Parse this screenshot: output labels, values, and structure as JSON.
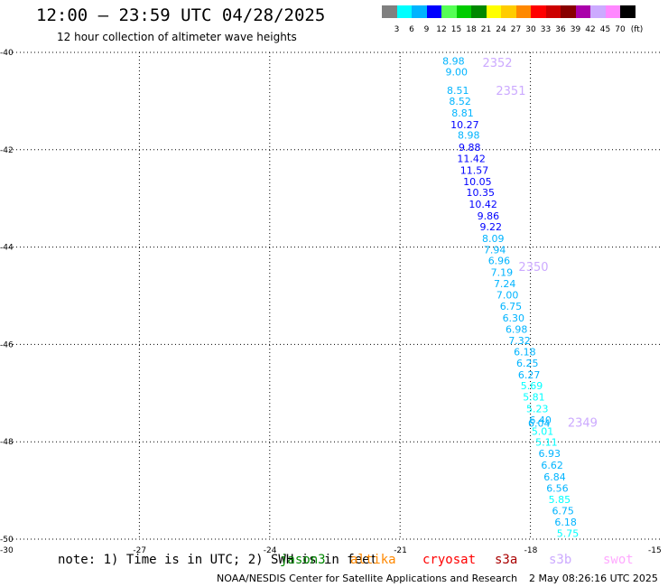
{
  "header": {
    "title": "12:00 – 23:59 UTC 04/28/2025",
    "subtitle": "12 hour collection of altimeter wave heights"
  },
  "legend": {
    "unit": "(ft)",
    "bins": [
      {
        "label": "3",
        "color": "#808080"
      },
      {
        "label": "6",
        "color": "#00ffff"
      },
      {
        "label": "9",
        "color": "#00b4ff"
      },
      {
        "label": "12",
        "color": "#0000ff"
      },
      {
        "label": "15",
        "color": "#55ff55"
      },
      {
        "label": "18",
        "color": "#00cc00"
      },
      {
        "label": "21",
        "color": "#008800"
      },
      {
        "label": "24",
        "color": "#ffff00"
      },
      {
        "label": "27",
        "color": "#ffcc00"
      },
      {
        "label": "30",
        "color": "#ff8800"
      },
      {
        "label": "33",
        "color": "#ff0000"
      },
      {
        "label": "36",
        "color": "#cc0000"
      },
      {
        "label": "39",
        "color": "#880000"
      },
      {
        "label": "42",
        "color": "#aa00aa"
      },
      {
        "label": "45",
        "color": "#ccaaff"
      },
      {
        "label": "70",
        "color": "#ff88ff"
      },
      {
        "label": "",
        "color": "#000000"
      }
    ]
  },
  "footer": {
    "note": "note: 1) Time is in UTC; 2) SWH is in feet",
    "satellites": [
      {
        "name": "jason3",
        "color": "#008800"
      },
      {
        "name": "altika",
        "color": "#ff8800"
      },
      {
        "name": "cryosat",
        "color": "#ff0000"
      },
      {
        "name": "s3a",
        "color": "#aa0000"
      },
      {
        "name": "s3b",
        "color": "#ccaaff"
      },
      {
        "name": "swot",
        "color": "#ffaaff"
      }
    ],
    "credit_org": "NOAA/NESDIS Center for Satellite Applications and Research",
    "credit_time": "2 May 08:26:16 UTC 2025"
  },
  "chart_data": {
    "type": "scatter",
    "title": "12:00 – 23:59 UTC 04/28/2025",
    "subtitle": "12 hour collection of altimeter wave heights",
    "xlim": [
      -30,
      -15
    ],
    "ylim": [
      -50,
      -40
    ],
    "x_ticks": [
      "-30",
      "-27",
      "-24",
      "-21",
      "-18",
      "-15"
    ],
    "y_ticks": [
      "-40",
      "-42",
      "-44",
      "-46",
      "-48",
      "-50"
    ],
    "x_tick_values": [
      -30,
      -27,
      -24,
      -21,
      -18,
      -15
    ],
    "y_tick_values": [
      -40,
      -42,
      -44,
      -46,
      -48,
      -50
    ],
    "grid": true,
    "unit": "ft",
    "points": [
      {
        "lon": -19.77,
        "lat": -40.18,
        "value": "8.98",
        "color": "#00b4ff"
      },
      {
        "lon": -19.7,
        "lat": -40.4,
        "value": "9.00",
        "color": "#00b4ff"
      },
      {
        "lon": -19.67,
        "lat": -40.78,
        "value": "8.51",
        "color": "#00b4ff"
      },
      {
        "lon": -19.62,
        "lat": -41.0,
        "value": "8.52",
        "color": "#00b4ff"
      },
      {
        "lon": -19.56,
        "lat": -41.24,
        "value": "8.81",
        "color": "#00b4ff"
      },
      {
        "lon": -19.51,
        "lat": -41.48,
        "value": "10.27",
        "color": "#0000ff"
      },
      {
        "lon": -19.42,
        "lat": -41.7,
        "value": "8.98",
        "color": "#00b4ff"
      },
      {
        "lon": -19.4,
        "lat": -41.95,
        "value": "9.88",
        "color": "#0000ff"
      },
      {
        "lon": -19.36,
        "lat": -42.18,
        "value": "11.42",
        "color": "#0000ff"
      },
      {
        "lon": -19.29,
        "lat": -42.42,
        "value": "11.57",
        "color": "#0000ff"
      },
      {
        "lon": -19.22,
        "lat": -42.65,
        "value": "10.05",
        "color": "#0000ff"
      },
      {
        "lon": -19.15,
        "lat": -42.88,
        "value": "10.35",
        "color": "#0000ff"
      },
      {
        "lon": -19.09,
        "lat": -43.12,
        "value": "10.42",
        "color": "#0000ff"
      },
      {
        "lon": -18.97,
        "lat": -43.36,
        "value": "9.86",
        "color": "#0000ff"
      },
      {
        "lon": -18.91,
        "lat": -43.58,
        "value": "9.22",
        "color": "#0000ff"
      },
      {
        "lon": -18.86,
        "lat": -43.82,
        "value": "8.09",
        "color": "#00b4ff"
      },
      {
        "lon": -18.82,
        "lat": -44.05,
        "value": "7.94",
        "color": "#00b4ff"
      },
      {
        "lon": -18.72,
        "lat": -44.28,
        "value": "6.96",
        "color": "#00b4ff"
      },
      {
        "lon": -18.66,
        "lat": -44.52,
        "value": "7.19",
        "color": "#00b4ff"
      },
      {
        "lon": -18.59,
        "lat": -44.75,
        "value": "7.24",
        "color": "#00b4ff"
      },
      {
        "lon": -18.53,
        "lat": -44.98,
        "value": "7.00",
        "color": "#00b4ff"
      },
      {
        "lon": -18.45,
        "lat": -45.21,
        "value": "6.75",
        "color": "#00b4ff"
      },
      {
        "lon": -18.39,
        "lat": -45.45,
        "value": "6.30",
        "color": "#00b4ff"
      },
      {
        "lon": -18.32,
        "lat": -45.69,
        "value": "6.98",
        "color": "#00b4ff"
      },
      {
        "lon": -18.25,
        "lat": -45.92,
        "value": "7.32",
        "color": "#00b4ff"
      },
      {
        "lon": -18.13,
        "lat": -46.15,
        "value": "6.18",
        "color": "#00b4ff"
      },
      {
        "lon": -18.07,
        "lat": -46.38,
        "value": "6.25",
        "color": "#00b4ff"
      },
      {
        "lon": -18.03,
        "lat": -46.62,
        "value": "6.27",
        "color": "#00b4ff"
      },
      {
        "lon": -17.97,
        "lat": -46.85,
        "value": "5.69",
        "color": "#00ffff"
      },
      {
        "lon": -17.92,
        "lat": -47.08,
        "value": "5.81",
        "color": "#00ffff"
      },
      {
        "lon": -17.84,
        "lat": -47.32,
        "value": "5.23",
        "color": "#00ffff"
      },
      {
        "lon": -17.77,
        "lat": -47.55,
        "value": "6.40",
        "color": "#00b4ff"
      },
      {
        "lon": -17.8,
        "lat": -47.62,
        "value": "6.04",
        "color": "#00b4ff"
      },
      {
        "lon": -17.72,
        "lat": -47.78,
        "value": "5.01",
        "color": "#00ffff"
      },
      {
        "lon": -17.63,
        "lat": -48.01,
        "value": "5.11",
        "color": "#00ffff"
      },
      {
        "lon": -17.56,
        "lat": -48.24,
        "value": "6.93",
        "color": "#00b4ff"
      },
      {
        "lon": -17.5,
        "lat": -48.48,
        "value": "6.62",
        "color": "#00b4ff"
      },
      {
        "lon": -17.44,
        "lat": -48.72,
        "value": "6.84",
        "color": "#00b4ff"
      },
      {
        "lon": -17.38,
        "lat": -48.95,
        "value": "6.56",
        "color": "#00b4ff"
      },
      {
        "lon": -17.33,
        "lat": -49.18,
        "value": "5.85",
        "color": "#00ffff"
      },
      {
        "lon": -17.25,
        "lat": -49.42,
        "value": "6.75",
        "color": "#00b4ff"
      },
      {
        "lon": -17.19,
        "lat": -49.65,
        "value": "6.18",
        "color": "#00b4ff"
      },
      {
        "lon": -17.14,
        "lat": -49.88,
        "value": "5.75",
        "color": "#00ffff"
      }
    ],
    "annotations": [
      {
        "text": "2352",
        "lon": -18.76,
        "lat": -40.2,
        "color": "#ccaaff"
      },
      {
        "text": "2351",
        "lon": -18.45,
        "lat": -40.78,
        "color": "#ccaaff"
      },
      {
        "text": "2350",
        "lon": -17.93,
        "lat": -44.4,
        "color": "#ccaaff"
      },
      {
        "text": "2349",
        "lon": -16.8,
        "lat": -47.6,
        "color": "#ccaaff"
      }
    ]
  }
}
